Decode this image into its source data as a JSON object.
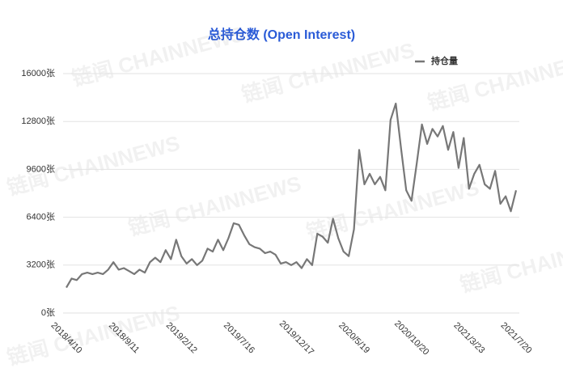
{
  "chart_data": {
    "type": "line",
    "title": "总持仓数 (Open Interest)",
    "watermark": "链闻 CHAINNEWS",
    "categories": [
      "2018/4/10",
      null,
      null,
      null,
      null,
      null,
      null,
      null,
      null,
      null,
      null,
      "2018/9/11",
      null,
      null,
      null,
      null,
      null,
      null,
      null,
      null,
      null,
      null,
      "2019/2/12",
      null,
      null,
      null,
      null,
      null,
      null,
      null,
      null,
      null,
      null,
      "2019/7/16",
      null,
      null,
      null,
      null,
      null,
      null,
      null,
      null,
      null,
      null,
      "2019/12/17",
      null,
      null,
      null,
      null,
      null,
      null,
      null,
      null,
      null,
      null,
      "2020/5/19",
      null,
      null,
      null,
      null,
      null,
      null,
      null,
      null,
      null,
      null,
      "2020/10/20",
      null,
      null,
      null,
      null,
      null,
      null,
      null,
      null,
      null,
      null,
      "2021/3/23",
      null,
      null,
      null,
      null,
      null,
      null,
      null,
      null,
      "2021/7/20"
    ],
    "series": [
      {
        "name": "持仓量",
        "color": "#777777",
        "values": [
          1700,
          2300,
          2200,
          2600,
          2700,
          2600,
          2700,
          2600,
          2900,
          3400,
          2900,
          3000,
          2800,
          2600,
          2900,
          2700,
          3400,
          3700,
          3400,
          4200,
          3600,
          4900,
          3800,
          3300,
          3600,
          3200,
          3500,
          4300,
          4100,
          4900,
          4200,
          5000,
          6000,
          5900,
          5200,
          4600,
          4400,
          4300,
          4000,
          4100,
          3900,
          3300,
          3400,
          3200,
          3400,
          3000,
          3600,
          3200,
          5300,
          5100,
          4700,
          6300,
          5000,
          4100,
          3800,
          5600,
          10900,
          8600,
          9300,
          8600,
          9100,
          8200,
          12900,
          14000,
          11000,
          8200,
          7500,
          10000,
          12600,
          11300,
          12300,
          11800,
          12500,
          10900,
          12100,
          9700,
          11700,
          8300,
          9300,
          9900,
          8600,
          8300,
          9500,
          7300,
          7800,
          6800,
          8200
        ]
      }
    ],
    "ylim": [
      0,
      16000
    ],
    "yticks": [
      {
        "value": 0,
        "label": "0张"
      },
      {
        "value": 3200,
        "label": "3200张"
      },
      {
        "value": 6400,
        "label": "6400张"
      },
      {
        "value": 9600,
        "label": "9600张"
      },
      {
        "value": 12800,
        "label": "12800张"
      },
      {
        "value": 16000,
        "label": "16000张"
      }
    ],
    "grid": true,
    "legend": "top-right"
  }
}
